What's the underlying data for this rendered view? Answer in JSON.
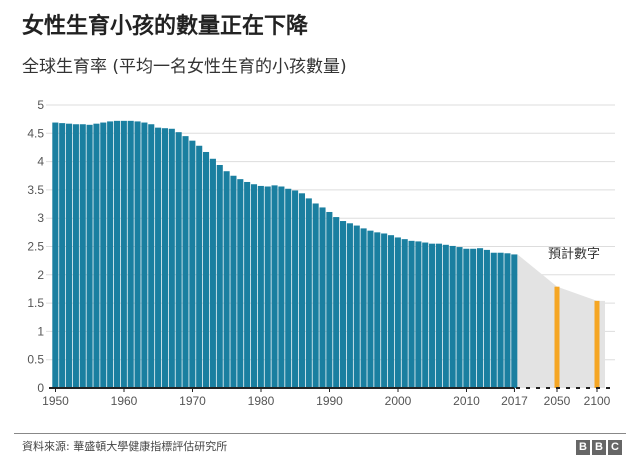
{
  "chart_data": {
    "type": "bar",
    "title": "女性生育小孩的數量正在下降",
    "subtitle": "全球生育率 (平均一名女性生育的小孩數量)",
    "xlabel": "",
    "ylabel": "",
    "ylim": [
      0,
      5
    ],
    "yticks": [
      "0",
      "0.5",
      "1",
      "1.5",
      "2",
      "2.5",
      "3",
      "3.5",
      "4",
      "4.5",
      "5"
    ],
    "xticks": [
      "1950",
      "1960",
      "1970",
      "1980",
      "1990",
      "2000",
      "2010",
      "2017",
      "2050",
      "2100"
    ],
    "grid": true,
    "series": [
      {
        "name": "historical",
        "color": "#1a7fa0",
        "x": [
          1950,
          1951,
          1952,
          1953,
          1954,
          1955,
          1956,
          1957,
          1958,
          1959,
          1960,
          1961,
          1962,
          1963,
          1964,
          1965,
          1966,
          1967,
          1968,
          1969,
          1970,
          1971,
          1972,
          1973,
          1974,
          1975,
          1976,
          1977,
          1978,
          1979,
          1980,
          1981,
          1982,
          1983,
          1984,
          1985,
          1986,
          1987,
          1988,
          1989,
          1990,
          1991,
          1992,
          1993,
          1994,
          1995,
          1996,
          1997,
          1998,
          1999,
          2000,
          2001,
          2002,
          2003,
          2004,
          2005,
          2006,
          2007,
          2008,
          2009,
          2010,
          2011,
          2012,
          2013,
          2014,
          2015,
          2016,
          2017
        ],
        "values": [
          4.69,
          4.68,
          4.67,
          4.66,
          4.66,
          4.65,
          4.67,
          4.69,
          4.71,
          4.72,
          4.72,
          4.72,
          4.71,
          4.69,
          4.66,
          4.6,
          4.59,
          4.58,
          4.52,
          4.45,
          4.37,
          4.28,
          4.17,
          4.05,
          3.94,
          3.83,
          3.75,
          3.69,
          3.64,
          3.6,
          3.57,
          3.56,
          3.58,
          3.56,
          3.52,
          3.49,
          3.44,
          3.35,
          3.26,
          3.19,
          3.11,
          3.02,
          2.95,
          2.91,
          2.87,
          2.82,
          2.78,
          2.75,
          2.73,
          2.7,
          2.66,
          2.63,
          2.6,
          2.59,
          2.57,
          2.55,
          2.55,
          2.53,
          2.51,
          2.49,
          2.46,
          2.46,
          2.47,
          2.44,
          2.39,
          2.39,
          2.38,
          2.36
        ]
      },
      {
        "name": "projection",
        "color": "#f5a623",
        "x": [
          2050,
          2100
        ],
        "values": [
          1.79,
          1.54
        ]
      }
    ],
    "annotation": "預計數字"
  },
  "footer": {
    "source": "資料來源: 華盛頓大學健康指標評估研究所",
    "logo": [
      "B",
      "B",
      "C"
    ]
  }
}
